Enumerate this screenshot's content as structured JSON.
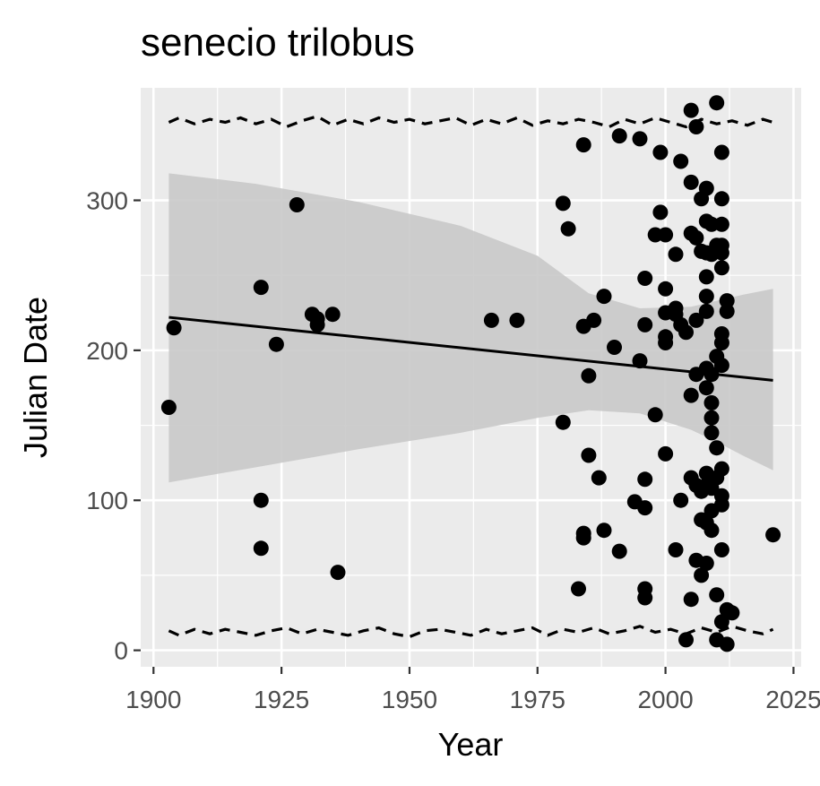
{
  "chart_data": {
    "type": "scatter",
    "title": "senecio trilobus",
    "xlabel": "Year",
    "ylabel": "Julian Date",
    "xlim": [
      1897.5,
      2026.5
    ],
    "ylim": [
      -11,
      375
    ],
    "x_ticks": [
      1900,
      1925,
      1950,
      1975,
      2000,
      2025
    ],
    "y_ticks": [
      0,
      100,
      200,
      300
    ],
    "grid": true,
    "colors": {
      "panel": "#ebebeb",
      "grid": "#ffffff",
      "points": "#000000",
      "ribbon": "#c9c9c9",
      "trend": "#000000"
    },
    "points": [
      [
        1903,
        162
      ],
      [
        1904,
        215
      ],
      [
        1921,
        242
      ],
      [
        1921,
        100
      ],
      [
        1921,
        68
      ],
      [
        1924,
        204
      ],
      [
        1928,
        297
      ],
      [
        1931,
        224
      ],
      [
        1932,
        221
      ],
      [
        1932,
        217
      ],
      [
        1935,
        224
      ],
      [
        1936,
        52
      ],
      [
        1966,
        220
      ],
      [
        1971,
        220
      ],
      [
        1980,
        298
      ],
      [
        1980,
        152
      ],
      [
        1981,
        281
      ],
      [
        1983,
        41
      ],
      [
        1984,
        337
      ],
      [
        1984,
        216
      ],
      [
        1984,
        78
      ],
      [
        1984,
        75
      ],
      [
        1985,
        183
      ],
      [
        1985,
        130
      ],
      [
        1986,
        220
      ],
      [
        1987,
        115
      ],
      [
        1988,
        236
      ],
      [
        1988,
        80
      ],
      [
        1990,
        202
      ],
      [
        1991,
        343
      ],
      [
        1991,
        66
      ],
      [
        1994,
        99
      ],
      [
        1995,
        341
      ],
      [
        1995,
        193
      ],
      [
        1996,
        248
      ],
      [
        1996,
        217
      ],
      [
        1996,
        114
      ],
      [
        1996,
        95
      ],
      [
        1996,
        41
      ],
      [
        1996,
        35
      ],
      [
        1998,
        277
      ],
      [
        1998,
        157
      ],
      [
        1999,
        332
      ],
      [
        1999,
        292
      ],
      [
        2000,
        277
      ],
      [
        2000,
        241
      ],
      [
        2000,
        225
      ],
      [
        2000,
        209
      ],
      [
        2000,
        205
      ],
      [
        2000,
        131
      ],
      [
        2002,
        264
      ],
      [
        2002,
        224
      ],
      [
        2002,
        228
      ],
      [
        2002,
        67
      ],
      [
        2003,
        217
      ],
      [
        2003,
        100
      ],
      [
        2003,
        326
      ],
      [
        2004,
        212
      ],
      [
        2004,
        7
      ],
      [
        2005,
        360
      ],
      [
        2005,
        312
      ],
      [
        2005,
        278
      ],
      [
        2005,
        170
      ],
      [
        2005,
        115
      ],
      [
        2005,
        34
      ],
      [
        2006,
        349
      ],
      [
        2006,
        275
      ],
      [
        2006,
        220
      ],
      [
        2006,
        184
      ],
      [
        2006,
        110
      ],
      [
        2006,
        60
      ],
      [
        2007,
        301
      ],
      [
        2007,
        266
      ],
      [
        2007,
        106
      ],
      [
        2007,
        87
      ],
      [
        2007,
        50
      ],
      [
        2008,
        308
      ],
      [
        2008,
        286
      ],
      [
        2008,
        265
      ],
      [
        2008,
        249
      ],
      [
        2008,
        236
      ],
      [
        2008,
        226
      ],
      [
        2008,
        188
      ],
      [
        2008,
        175
      ],
      [
        2008,
        118
      ],
      [
        2008,
        110
      ],
      [
        2008,
        85
      ],
      [
        2008,
        58
      ],
      [
        2009,
        284
      ],
      [
        2009,
        264
      ],
      [
        2009,
        184
      ],
      [
        2009,
        165
      ],
      [
        2009,
        155
      ],
      [
        2009,
        145
      ],
      [
        2009,
        108
      ],
      [
        2009,
        93
      ],
      [
        2009,
        80
      ],
      [
        2010,
        365
      ],
      [
        2010,
        270
      ],
      [
        2010,
        196
      ],
      [
        2010,
        135
      ],
      [
        2010,
        115
      ],
      [
        2010,
        37
      ],
      [
        2010,
        7
      ],
      [
        2011,
        332
      ],
      [
        2011,
        301
      ],
      [
        2011,
        284
      ],
      [
        2011,
        270
      ],
      [
        2011,
        265
      ],
      [
        2011,
        255
      ],
      [
        2011,
        211
      ],
      [
        2011,
        205
      ],
      [
        2011,
        190
      ],
      [
        2011,
        121
      ],
      [
        2011,
        103
      ],
      [
        2011,
        97
      ],
      [
        2011,
        67
      ],
      [
        2011,
        19
      ],
      [
        2012,
        233
      ],
      [
        2012,
        226
      ],
      [
        2012,
        4
      ],
      [
        2012,
        27
      ],
      [
        2013,
        25
      ],
      [
        2021,
        77
      ]
    ],
    "trend_line": {
      "x": [
        1903,
        2021
      ],
      "y": [
        222,
        180
      ]
    },
    "confidence_band": {
      "x": [
        1903,
        1920,
        1940,
        1960,
        1975,
        1985,
        1995,
        2005,
        2010,
        2015,
        2021
      ],
      "upper": [
        318,
        311,
        299,
        283,
        263,
        238,
        228,
        229,
        233,
        237,
        241
      ],
      "lower": [
        112,
        122,
        134,
        145,
        155,
        160,
        158,
        147,
        139,
        130,
        120
      ]
    },
    "dashed_upper": {
      "x": [
        1903,
        1905,
        1908,
        1911,
        1914,
        1917,
        1920,
        1923,
        1926,
        1929,
        1932,
        1935,
        1938,
        1941,
        1944,
        1947,
        1950,
        1953,
        1956,
        1959,
        1962,
        1965,
        1968,
        1971,
        1974,
        1977,
        1980,
        1983,
        1986,
        1989,
        1992,
        1995,
        1998,
        2001,
        2004,
        2007,
        2010,
        2013,
        2016,
        2019,
        2021
      ],
      "y": [
        352,
        355,
        351,
        354,
        352,
        355,
        351,
        354,
        349,
        353,
        356,
        350,
        354,
        351,
        355,
        352,
        354,
        351,
        353,
        355,
        350,
        354,
        351,
        355,
        350,
        353,
        351,
        354,
        352,
        349,
        354,
        351,
        355,
        352,
        349,
        354,
        351,
        353,
        350,
        354,
        352
      ]
    },
    "dashed_lower": {
      "x": [
        1903,
        1905,
        1908,
        1911,
        1914,
        1917,
        1920,
        1923,
        1926,
        1929,
        1932,
        1935,
        1938,
        1941,
        1944,
        1947,
        1950,
        1953,
        1956,
        1959,
        1962,
        1965,
        1968,
        1971,
        1974,
        1977,
        1980,
        1983,
        1986,
        1989,
        1992,
        1995,
        1998,
        2001,
        2004,
        2007,
        2010,
        2013,
        2016,
        2019,
        2021
      ],
      "y": [
        13,
        10,
        14,
        11,
        14,
        12,
        10,
        13,
        15,
        11,
        14,
        12,
        10,
        13,
        15,
        11,
        9,
        13,
        14,
        12,
        10,
        14,
        11,
        13,
        15,
        10,
        14,
        12,
        15,
        11,
        13,
        16,
        12,
        14,
        11,
        15,
        12,
        16,
        13,
        11,
        14
      ]
    }
  }
}
